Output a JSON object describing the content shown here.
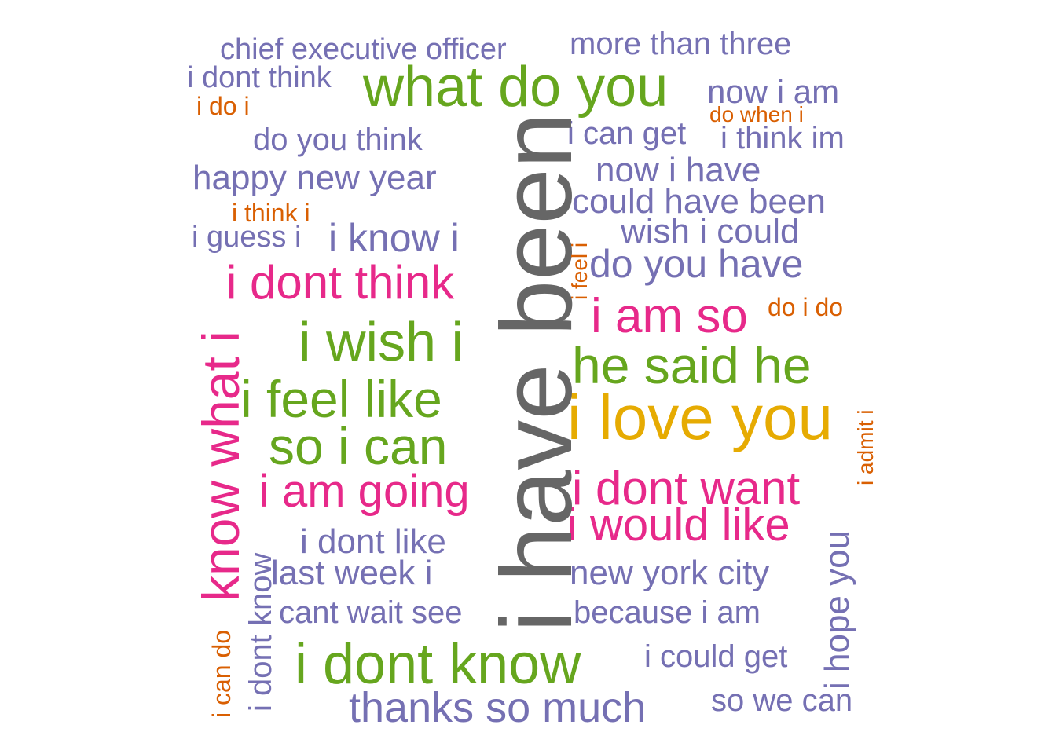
{
  "colors": {
    "gray": "#666666",
    "purple": "#7570b3",
    "green": "#66a61e",
    "pink": "#e7298a",
    "gold": "#e6ab02",
    "orange": "#d95f02"
  },
  "words": [
    {
      "id": "chief-executive-officer",
      "text": "chief executive officer",
      "color": "purple"
    },
    {
      "id": "more-than-three",
      "text": "more than three",
      "color": "purple"
    },
    {
      "id": "i-dont-think-small",
      "text": "i dont think",
      "color": "purple"
    },
    {
      "id": "what-do-you",
      "text": "what do you",
      "color": "green"
    },
    {
      "id": "now-i-am",
      "text": "now i am",
      "color": "purple"
    },
    {
      "id": "i-do-i",
      "text": "i do i",
      "color": "orange"
    },
    {
      "id": "do-when-i",
      "text": "do when i",
      "color": "orange"
    },
    {
      "id": "do-you-think",
      "text": "do you think",
      "color": "purple"
    },
    {
      "id": "i-can-get",
      "text": "i can get",
      "color": "purple"
    },
    {
      "id": "i-think-im",
      "text": "i think im",
      "color": "purple"
    },
    {
      "id": "happy-new-year",
      "text": "happy new year",
      "color": "purple"
    },
    {
      "id": "now-i-have",
      "text": "now i have",
      "color": "purple"
    },
    {
      "id": "could-have-been",
      "text": "could have been",
      "color": "purple"
    },
    {
      "id": "i-think-i",
      "text": "i think i",
      "color": "orange"
    },
    {
      "id": "wish-i-could",
      "text": "wish i could",
      "color": "purple"
    },
    {
      "id": "i-guess-i",
      "text": "i guess i",
      "color": "purple"
    },
    {
      "id": "i-know-i",
      "text": "i know i",
      "color": "purple"
    },
    {
      "id": "do-you-have",
      "text": "do you have",
      "color": "purple"
    },
    {
      "id": "i-dont-think-large",
      "text": "i dont think",
      "color": "pink"
    },
    {
      "id": "i-am-so",
      "text": "i am so",
      "color": "pink"
    },
    {
      "id": "do-i-do",
      "text": "do i do",
      "color": "orange"
    },
    {
      "id": "i-wish-i",
      "text": "i wish i",
      "color": "green"
    },
    {
      "id": "he-said-he",
      "text": "he said he",
      "color": "green"
    },
    {
      "id": "i-feel-like",
      "text": "i feel like",
      "color": "green"
    },
    {
      "id": "i-love-you",
      "text": "i love you",
      "color": "gold"
    },
    {
      "id": "so-i-can",
      "text": "so i can",
      "color": "green"
    },
    {
      "id": "i-am-going",
      "text": "i am going",
      "color": "pink"
    },
    {
      "id": "i-dont-want",
      "text": "i dont want",
      "color": "pink"
    },
    {
      "id": "i-would-like",
      "text": "i would like",
      "color": "pink"
    },
    {
      "id": "i-dont-like",
      "text": "i dont like",
      "color": "purple"
    },
    {
      "id": "last-week-i",
      "text": "last week i",
      "color": "purple"
    },
    {
      "id": "new-york-city",
      "text": "new york city",
      "color": "purple"
    },
    {
      "id": "cant-wait-see",
      "text": "cant wait see",
      "color": "purple"
    },
    {
      "id": "because-i-am",
      "text": "because i am",
      "color": "purple"
    },
    {
      "id": "i-could-get",
      "text": "i could get",
      "color": "purple"
    },
    {
      "id": "i-dont-know-large",
      "text": "i dont know",
      "color": "green"
    },
    {
      "id": "so-we-can",
      "text": "so we can",
      "color": "purple"
    },
    {
      "id": "thanks-so-much",
      "text": "thanks so much",
      "color": "purple"
    },
    {
      "id": "i-have-been",
      "text": "i have been",
      "color": "gray"
    },
    {
      "id": "know-what-i",
      "text": "know what i",
      "color": "pink"
    },
    {
      "id": "i-can-do",
      "text": "i can do",
      "color": "orange"
    },
    {
      "id": "i-dont-know-vertical",
      "text": "i dont know",
      "color": "purple"
    },
    {
      "id": "i-feel-i",
      "text": "i feel i",
      "color": "orange"
    },
    {
      "id": "i-admit-i",
      "text": "i admit i",
      "color": "orange"
    },
    {
      "id": "i-hope-you",
      "text": "i hope you",
      "color": "purple"
    }
  ]
}
